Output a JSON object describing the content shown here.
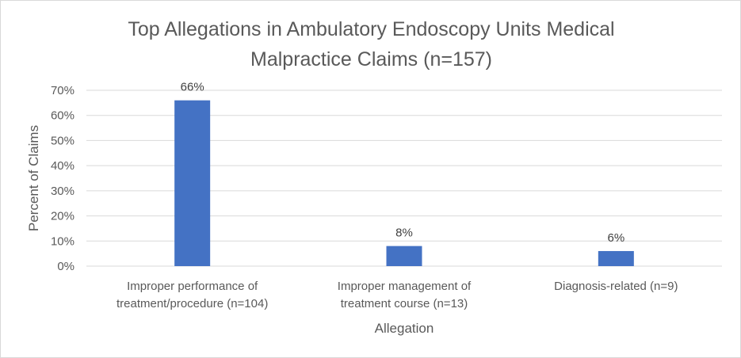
{
  "chart_data": {
    "type": "bar",
    "title_lines": [
      "Top Allegations in Ambulatory Endoscopy Units Medical",
      "Malpractice Claims (n=157)"
    ],
    "xlabel": "Allegation",
    "ylabel": "Percent of Claims",
    "ylim": [
      0,
      70
    ],
    "yticks": [
      0,
      10,
      20,
      30,
      40,
      50,
      60,
      70
    ],
    "ytick_labels": [
      "0%",
      "10%",
      "20%",
      "30%",
      "40%",
      "50%",
      "60%",
      "70%"
    ],
    "categories": [
      [
        "Improper performance of",
        "treatment/procedure (n=104)"
      ],
      [
        "Improper management of",
        "treatment course (n=13)"
      ],
      [
        "Diagnosis-related (n=9)"
      ]
    ],
    "values": [
      66,
      8,
      6
    ],
    "data_labels": [
      "66%",
      "8%",
      "6%"
    ],
    "bar_color": "#4472c4",
    "grid": true,
    "legend": "none"
  }
}
